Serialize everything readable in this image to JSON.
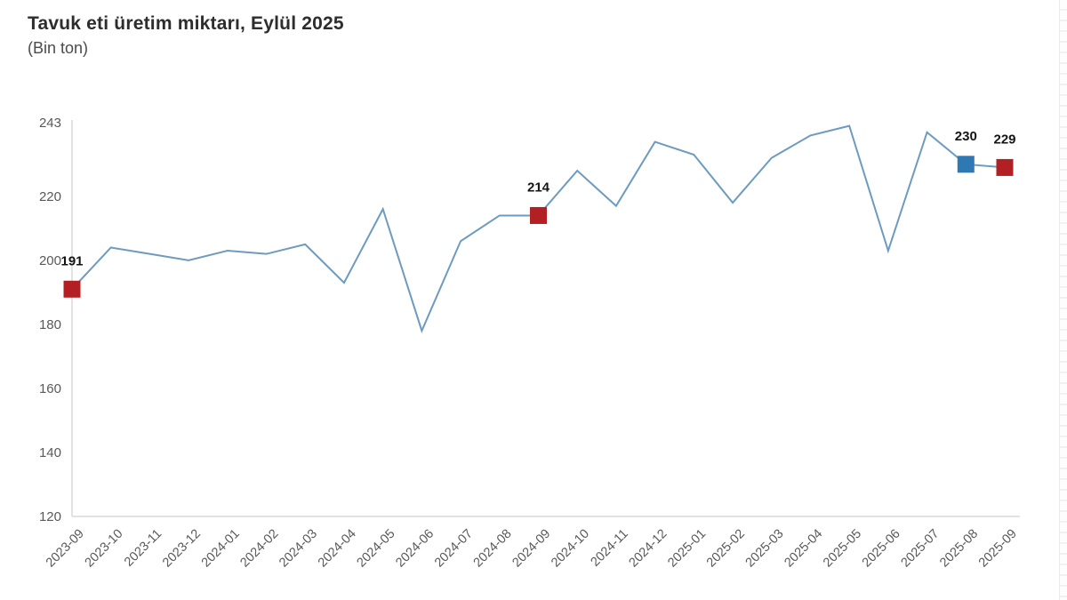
{
  "header": {
    "title": "Tavuk eti üretim miktarı, Eylül 2025",
    "subtitle": "(Bin ton)"
  },
  "chart_data": {
    "type": "line",
    "title": "Tavuk eti üretim miktarı, Eylül 2025",
    "subtitle_unit": "(Bin ton)",
    "xlabel": "",
    "ylabel": "",
    "grid": false,
    "legend_position": "none",
    "ylim": [
      120,
      243
    ],
    "yticks": [
      120,
      140,
      160,
      180,
      200,
      220,
      243
    ],
    "categories": [
      "2023-09",
      "2023-10",
      "2023-11",
      "2023-12",
      "2024-01",
      "2024-02",
      "2024-03",
      "2024-04",
      "2024-05",
      "2024-06",
      "2024-07",
      "2024-08",
      "2024-09",
      "2024-10",
      "2024-11",
      "2024-12",
      "2025-01",
      "2025-02",
      "2025-03",
      "2025-04",
      "2025-05",
      "2025-06",
      "2025-07",
      "2025-08",
      "2025-09"
    ],
    "values": [
      191,
      204,
      202,
      200,
      203,
      202,
      205,
      193,
      216,
      178,
      206,
      214,
      214,
      228,
      217,
      237,
      233,
      218,
      232,
      239,
      242,
      203,
      240,
      230,
      229
    ],
    "markers": [
      {
        "index": 0,
        "label": "191",
        "color": "red"
      },
      {
        "index": 12,
        "label": "214",
        "color": "red"
      },
      {
        "index": 23,
        "label": "230",
        "color": "blue"
      },
      {
        "index": 24,
        "label": "229",
        "color": "red"
      }
    ],
    "colors": {
      "line": "#6d9bc0",
      "red": "#b22024",
      "blue": "#2e78b4",
      "axis": "#d9d9d9",
      "tick_text": "#595959",
      "data_label": "#141414"
    }
  }
}
